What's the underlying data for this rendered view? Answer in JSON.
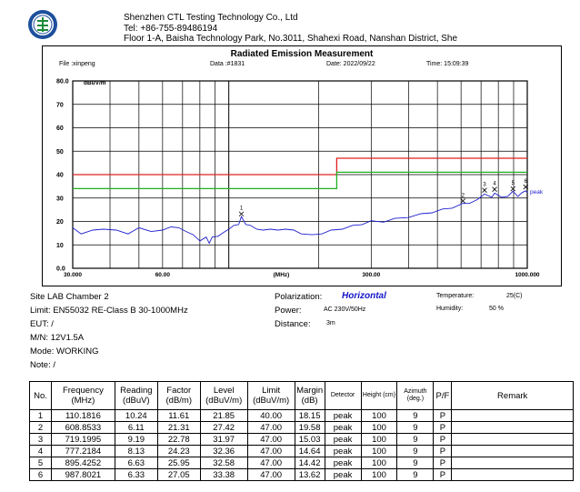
{
  "header": {
    "company": "Shenzhen CTL Testing Technology Co., Ltd",
    "tel": "Tel: +86-755-89486194",
    "address": "Floor 1-A, Baisha Technology Park, No.3011, Shahexi Road, Nanshan District, She",
    "logo_icon": "ctl-logo-seal"
  },
  "report": {
    "title": "Radiated Emission Measurement",
    "file": "File :xinpeng",
    "data": "Data :#1831",
    "date": "Date: 2022/09/22",
    "time": "Time: 15:09:39"
  },
  "chart_data": {
    "type": "line",
    "title": "Radiated Emission Measurement",
    "ylabel": "dBuV/m",
    "xlabel": "(MHz)",
    "x_scale": "log",
    "xlim": [
      30,
      1000
    ],
    "ylim": [
      0,
      80
    ],
    "x_ticks": [
      "30.000",
      "60.00",
      "(MHz)",
      "300.00",
      "1000.000"
    ],
    "y_ticks": [
      "0.0",
      "10",
      "20",
      "30",
      "40",
      "50",
      "60",
      "70",
      "80.0"
    ],
    "grid": true,
    "limit_lines": [
      {
        "name": "limit",
        "color": "#e02020",
        "segments": [
          [
            30,
            230,
            40
          ],
          [
            230,
            1000,
            47
          ]
        ]
      },
      {
        "name": "margin",
        "color": "#20b020",
        "segments": [
          [
            30,
            230,
            34
          ],
          [
            230,
            1000,
            41
          ]
        ]
      }
    ],
    "series": [
      {
        "color": "#2020d0",
        "x": [
          30,
          32,
          35,
          38,
          42,
          46,
          50,
          55,
          60,
          64,
          68,
          72,
          76,
          80,
          84,
          86,
          88,
          92,
          96,
          100,
          104,
          108,
          110.2,
          114,
          118,
          124,
          130,
          138,
          146,
          155,
          165,
          175,
          190,
          205,
          220,
          240,
          260,
          280,
          300,
          330,
          360,
          400,
          440,
          480,
          520,
          560,
          608.9,
          640,
          680,
          719.2,
          760,
          777.2,
          820,
          860,
          895.4,
          930,
          960,
          987.8,
          1000
        ],
        "values": [
          17,
          15,
          16,
          17,
          16,
          15,
          17,
          16,
          16,
          18,
          17,
          16,
          14,
          12,
          13,
          11,
          13,
          14,
          15,
          17,
          18,
          19,
          21.8,
          19,
          18,
          17,
          16,
          17,
          16,
          17,
          16,
          15,
          14,
          15,
          16,
          17,
          18,
          19,
          20,
          20,
          21,
          22,
          23,
          24,
          25,
          26,
          27.4,
          28,
          29,
          32,
          30,
          32.4,
          30,
          31,
          32.6,
          31,
          32,
          33.4,
          32
        ]
      }
    ],
    "markers": [
      {
        "label": "1",
        "x": 110.1816,
        "y": 21.85
      },
      {
        "label": "2",
        "x": 608.8533,
        "y": 27.42
      },
      {
        "label": "3",
        "x": 719.1995,
        "y": 31.97
      },
      {
        "label": "4",
        "x": 777.2184,
        "y": 32.36
      },
      {
        "label": "5",
        "x": 895.4252,
        "y": 32.58
      },
      {
        "label": "6",
        "x": 987.8021,
        "y": 33.38
      }
    ],
    "peak_label": "peak"
  },
  "test_info": {
    "site": "Site LAB Chamber 2",
    "limit": "Limit: EN55032 RE-Class B 30-1000MHz",
    "eut": "EUT: /",
    "mn": "M/N:  12V1.5A",
    "mode": "Mode:  WORKING",
    "note": "Note: /",
    "polarization_label": "Polarization:",
    "polarization_value": "Horizontal",
    "power_label": "Power:",
    "power_value": "AC 230V/50Hz",
    "distance_label": "Distance:",
    "distance_value": "3m",
    "temperature_label": "Temperature:",
    "temperature_value": "25(C)",
    "humidity_label": "Humidity:",
    "humidity_value": "50 %"
  },
  "table": {
    "headers": [
      "No.",
      "Frequency (MHz)",
      "Reading (dBuV)",
      "Factor (dB/m)",
      "Level (dBuV/m)",
      "Limit (dBuV/m)",
      "Margin (dB)",
      "Detector",
      "Height (cm)",
      "Azimuth (deg.)",
      "P/F",
      "Remark"
    ],
    "rows": [
      [
        "1",
        "110.1816",
        "10.24",
        "11.61",
        "21.85",
        "40.00",
        "18.15",
        "peak",
        "100",
        "9",
        "P",
        ""
      ],
      [
        "2",
        "608.8533",
        "6.11",
        "21.31",
        "27.42",
        "47.00",
        "19.58",
        "peak",
        "100",
        "9",
        "P",
        ""
      ],
      [
        "3",
        "719.1995",
        "9.19",
        "22.78",
        "31.97",
        "47.00",
        "15.03",
        "peak",
        "100",
        "9",
        "P",
        ""
      ],
      [
        "4",
        "777.2184",
        "8.13",
        "24.23",
        "32.36",
        "47.00",
        "14.64",
        "peak",
        "100",
        "9",
        "P",
        ""
      ],
      [
        "5",
        "895.4252",
        "6.63",
        "25.95",
        "32.58",
        "47.00",
        "14.42",
        "peak",
        "100",
        "9",
        "P",
        ""
      ],
      [
        "6",
        "987.8021",
        "6.33",
        "27.05",
        "33.38",
        "47.00",
        "13.62",
        "peak",
        "100",
        "9",
        "P",
        ""
      ]
    ]
  }
}
